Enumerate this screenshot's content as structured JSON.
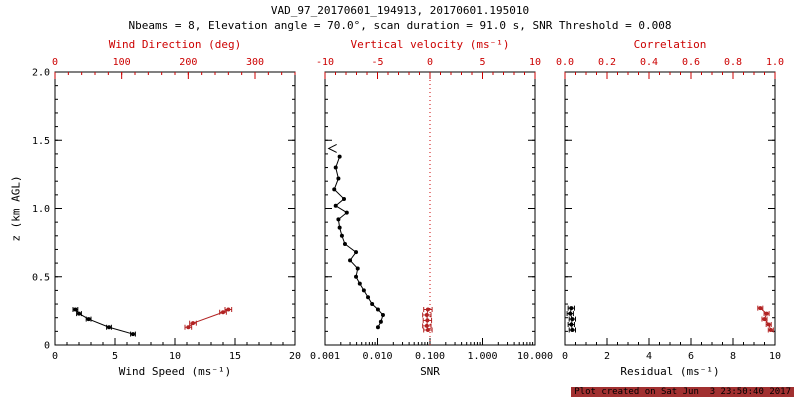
{
  "title": {
    "line1": "VAD_97_20170601_194913, 20170601.195010",
    "line2": "Nbeams = 8, Elevation angle = 70.0°, scan duration = 91.0 s, SNR Threshold = 0.008"
  },
  "footer": {
    "created": "Plot created on Sat Jun  3 23:50:40 2017"
  },
  "colors": {
    "axis_red": "#cc0000",
    "data_red": "#b22222",
    "black": "#000000"
  },
  "chart_data": {
    "type": "scatter",
    "y_axis": {
      "label": "z (km AGL)",
      "min": 0,
      "max": 2,
      "tick_values": [
        0,
        0.5,
        1.0,
        1.5,
        2.0
      ],
      "tick_labels": [
        "0",
        "0.5",
        "1.0",
        "1.5",
        "2.0"
      ],
      "minor_step": 0.1
    },
    "panels": [
      {
        "name": "wind",
        "show_y_labels": true,
        "bottom_axis": {
          "label": "Wind Speed (ms⁻¹)",
          "min": 0,
          "max": 20,
          "tick_values": [
            0,
            5,
            10,
            15,
            20
          ],
          "tick_labels": [
            "0",
            "5",
            "10",
            "15",
            "20"
          ],
          "minor_step": 1,
          "color": "black"
        },
        "top_axis": {
          "label": "Wind Direction (deg)",
          "min": 0,
          "max": 360,
          "tick_values": [
            0,
            100,
            200,
            300
          ],
          "tick_labels": [
            "0",
            "100",
            "200",
            "300"
          ],
          "minor_step": 20,
          "color": "red"
        },
        "series": [
          {
            "name": "wind-speed",
            "axis": "bottom",
            "color": "black",
            "line": true,
            "marker": "dot",
            "z": [
              0.26,
              0.23,
              0.19,
              0.13,
              0.08
            ],
            "values": [
              1.7,
              2.0,
              2.8,
              4.5,
              6.5
            ],
            "xerr": 0.2
          },
          {
            "name": "wind-direction",
            "axis": "top",
            "color": "red",
            "line": true,
            "marker": "dot",
            "z": [
              0.26,
              0.24,
              0.16,
              0.13
            ],
            "values": [
              260,
              252,
              207,
              200
            ],
            "xerr": 5
          }
        ]
      },
      {
        "name": "snr",
        "show_y_labels": false,
        "bottom_axis": {
          "label": "SNR",
          "scale": "log",
          "min": 0.001,
          "max": 10,
          "tick_values": [
            0.001,
            0.01,
            0.1,
            1,
            10
          ],
          "tick_labels": [
            "0.001",
            "0.010",
            "0.100",
            "1.000",
            "10.000"
          ],
          "color": "black"
        },
        "top_axis": {
          "label": "Vertical velocity (ms⁻¹)",
          "min": -10,
          "max": 10,
          "tick_values": [
            -10,
            -5,
            0,
            5,
            10
          ],
          "tick_labels": [
            "-10",
            "-5",
            "0",
            "5",
            "10"
          ],
          "minor_step": 1,
          "color": "red"
        },
        "ref_line": {
          "axis": "top",
          "value": 0,
          "color": "red",
          "style": "dotted"
        },
        "series": [
          {
            "name": "snr-profile",
            "axis": "bottom",
            "color": "black",
            "line": true,
            "marker": "dot",
            "z": [
              1.38,
              1.3,
              1.22,
              1.14,
              1.07,
              1.02,
              0.97,
              0.92,
              0.86,
              0.8,
              0.74,
              0.68,
              0.62,
              0.56,
              0.5,
              0.45,
              0.4,
              0.35,
              0.3,
              0.26,
              0.22,
              0.17,
              0.13
            ],
            "values": [
              0.0019,
              0.0016,
              0.0018,
              0.0015,
              0.0023,
              0.0016,
              0.0026,
              0.0018,
              0.0019,
              0.0021,
              0.0024,
              0.0039,
              0.003,
              0.0042,
              0.0039,
              0.0046,
              0.0055,
              0.0066,
              0.0079,
              0.0102,
              0.0127,
              0.0116,
              0.0102
            ]
          },
          {
            "name": "snr-offscale-marker",
            "axis": "bottom",
            "color": "black",
            "line": false,
            "marker": "left-arrow",
            "z": [
              1.44
            ],
            "values": [
              0.0014
            ]
          },
          {
            "name": "vertical-velocity",
            "axis": "top",
            "color": "red",
            "line": true,
            "marker": "dot",
            "z": [
              0.26,
              0.22,
              0.18,
              0.14,
              0.11
            ],
            "values": [
              -0.2,
              -0.3,
              -0.25,
              -0.3,
              -0.2
            ],
            "xerr": 0.4
          }
        ]
      },
      {
        "name": "residual",
        "show_y_labels": false,
        "bottom_axis": {
          "label": "Residual (ms⁻¹)",
          "min": 0,
          "max": 10,
          "tick_values": [
            0,
            2,
            4,
            6,
            8,
            10
          ],
          "tick_labels": [
            "0",
            "2",
            "4",
            "6",
            "8",
            "10"
          ],
          "minor_step": 0.5,
          "color": "black"
        },
        "top_axis": {
          "label": "Correlation",
          "min": 0,
          "max": 1,
          "tick_values": [
            0,
            0.2,
            0.4,
            0.6,
            0.8,
            1.0
          ],
          "tick_labels": [
            "0.0",
            "0.2",
            "0.4",
            "0.6",
            "0.8",
            "1.0"
          ],
          "minor_step": 0.05,
          "color": "red"
        },
        "series": [
          {
            "name": "residual-profile",
            "axis": "bottom",
            "color": "black",
            "line": true,
            "marker": "dot",
            "z": [
              0.27,
              0.23,
              0.19,
              0.15,
              0.11
            ],
            "values": [
              0.3,
              0.25,
              0.35,
              0.3,
              0.35
            ],
            "xerr": 0.15
          },
          {
            "name": "correlation",
            "axis": "top",
            "color": "red",
            "line": true,
            "marker": "dot",
            "z": [
              0.27,
              0.23,
              0.19,
              0.15,
              0.11
            ],
            "values": [
              0.93,
              0.96,
              0.95,
              0.97,
              0.98
            ],
            "xerr": 0.012
          }
        ]
      }
    ]
  }
}
